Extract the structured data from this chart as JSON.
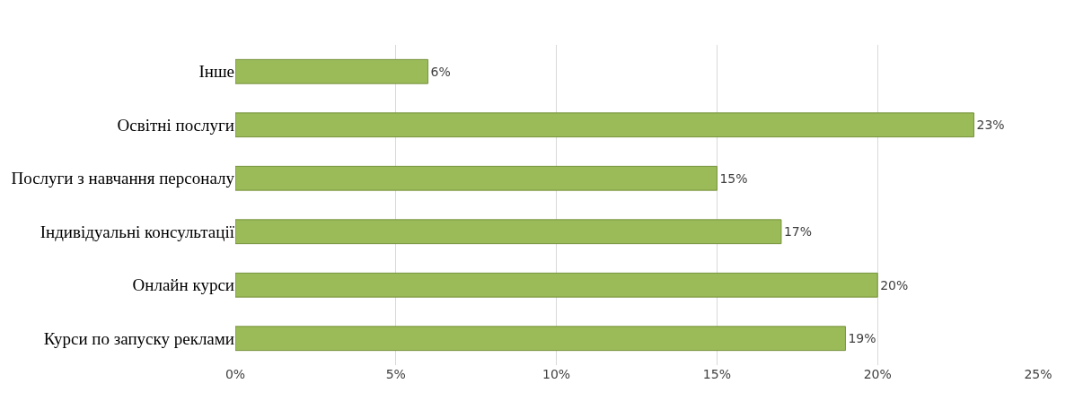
{
  "chart_data": {
    "type": "bar",
    "orientation": "horizontal",
    "categories": [
      "Інше",
      "Освітні послуги",
      "Послуги з навчання персоналу",
      "Індивідуальні консультації",
      "Онлайн курси",
      "Курси по запуску реклами"
    ],
    "values": [
      6,
      23,
      15,
      17,
      20,
      19
    ],
    "value_labels": [
      "6%",
      "23%",
      "15%",
      "17%",
      "20%",
      "19%"
    ],
    "color": "#9bbb59",
    "xlim": [
      0,
      25
    ],
    "xticks": [
      {
        "value": 0,
        "label": "0%"
      },
      {
        "value": 5,
        "label": "5%"
      },
      {
        "value": 10,
        "label": "10%"
      },
      {
        "value": 15,
        "label": "15%"
      },
      {
        "value": 20,
        "label": "20%"
      },
      {
        "value": 25,
        "label": "25%"
      }
    ],
    "grid": "x",
    "legend": false
  }
}
